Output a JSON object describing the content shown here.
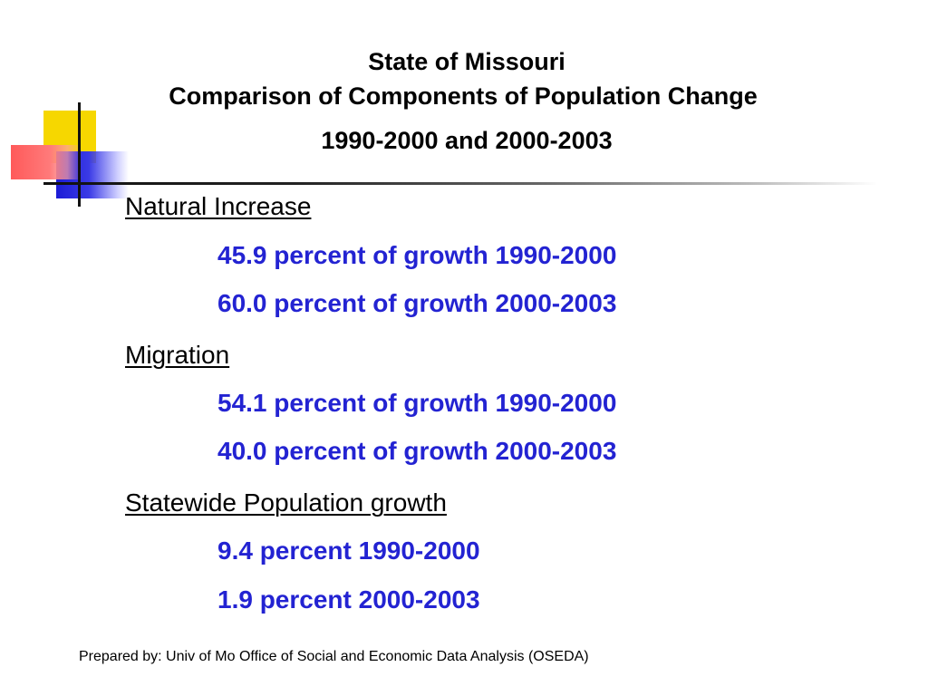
{
  "title": {
    "line1": "State of Missouri",
    "line2": "Comparison of Components of Population Change",
    "line3": "1990-2000 and 2000-2003"
  },
  "sections": [
    {
      "heading": "Natural Increase",
      "items": [
        "45.9 percent of growth 1990-2000",
        "60.0 percent of growth 2000-2003"
      ]
    },
    {
      "heading": "Migration",
      "items": [
        "54.1 percent of growth 1990-2000",
        "40.0 percent of growth 2000-2003"
      ]
    },
    {
      "heading": "Statewide Population growth",
      "items": [
        "9.4 percent 1990-2000",
        "1.9 percent 2000-2003"
      ]
    }
  ],
  "footer": "Prepared by: Univ of Mo Office of Social and Economic Data Analysis (OSEDA)",
  "colors": {
    "item_text": "#2323d2",
    "deco_yellow": "#f6d700",
    "deco_blue": "#1c1cd6",
    "deco_red": "#ff5a5a"
  }
}
